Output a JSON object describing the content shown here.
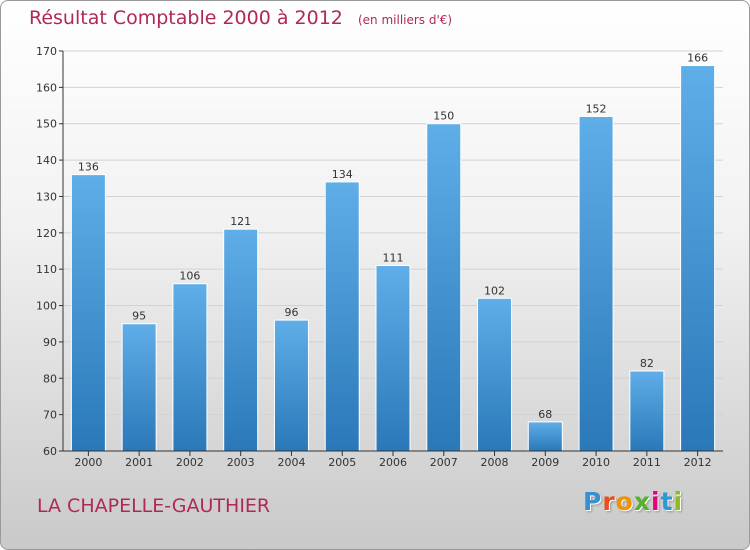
{
  "title": "Résultat Comptable 2000 à 2012",
  "subtitle": "(en milliers d'€)",
  "place": "LA CHAPELLE-GAUTHIER",
  "logo": {
    "text": "Proxiti",
    "letter_colors": [
      "#3a8fd0",
      "#e94e1b",
      "#f39200",
      "#55b030",
      "#e6007e",
      "#2a9ad6",
      "#8bbf20"
    ]
  },
  "colors": {
    "title": "#b0285a",
    "bar_top": "#5faee8",
    "bar_bottom": "#2a78b8",
    "grid": "#d2d2d2",
    "axis": "#333333",
    "label": "#333333"
  },
  "chart_data": {
    "type": "bar",
    "title": "Résultat Comptable 2000 à 2012",
    "subtitle": "(en milliers d'€)",
    "xlabel": "",
    "ylabel": "",
    "categories": [
      "2000",
      "2001",
      "2002",
      "2003",
      "2004",
      "2005",
      "2006",
      "2007",
      "2008",
      "2009",
      "2010",
      "2011",
      "2012"
    ],
    "values": [
      136,
      95,
      106,
      121,
      96,
      134,
      111,
      150,
      102,
      68,
      152,
      82,
      166
    ],
    "ylim": [
      60,
      170
    ],
    "yticks": [
      60,
      70,
      80,
      90,
      100,
      110,
      120,
      130,
      140,
      150,
      160,
      170
    ],
    "grid": "horizontal",
    "data_labels": true,
    "legend": "none"
  }
}
